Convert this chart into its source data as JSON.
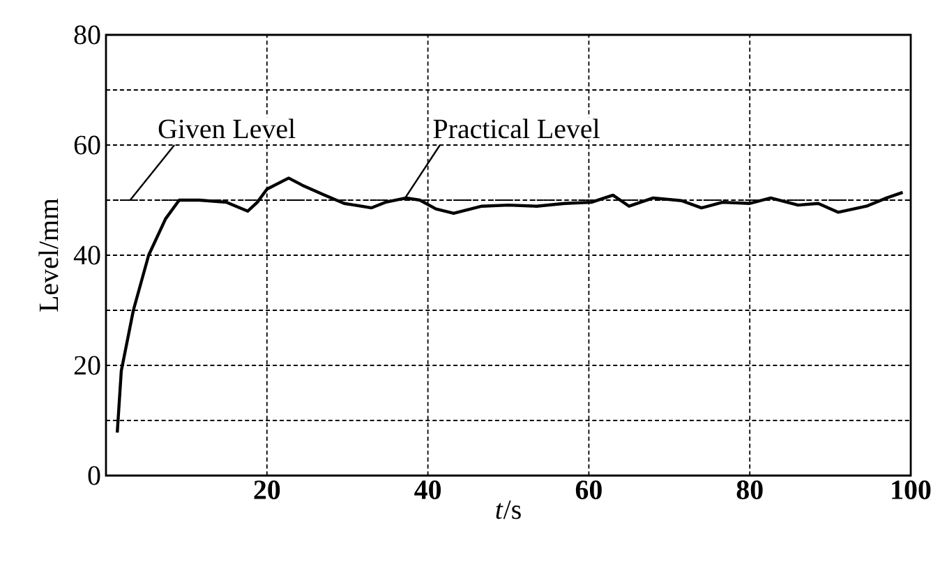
{
  "chart_data": {
    "type": "line",
    "xlabel": "*t*/s",
    "ylabel": "Level/mm",
    "xlim": [
      0,
      100
    ],
    "ylim": [
      0,
      80
    ],
    "xticks": [
      20,
      40,
      60,
      80,
      100
    ],
    "yticks": [
      0,
      {
        "value": 10,
        "label": null
      },
      20,
      {
        "value": 30,
        "label": null
      },
      40,
      {
        "value": 50,
        "label": null
      },
      60,
      {
        "value": 70,
        "label": null
      },
      80
    ],
    "grid": true,
    "marker": "none",
    "series": [
      {
        "name": "Given Level",
        "color": "#000000",
        "line_style": "dashed",
        "x": [
          0,
          100
        ],
        "values": [
          50,
          50
        ]
      },
      {
        "name": "Practical Level",
        "color": "#000000",
        "line_style": "solid",
        "x": [
          1.4,
          1.9,
          3.4,
          5.3,
          7.4,
          9.1,
          11.6,
          15,
          17.6,
          18.8,
          20,
          22.7,
          24.4,
          27,
          29.6,
          33,
          34.7,
          37.3,
          39,
          41,
          43.2,
          46.7,
          50,
          53.5,
          57,
          60.3,
          63,
          65,
          68,
          71.5,
          74,
          76.6,
          80,
          82.6,
          86,
          88.5,
          91,
          94.5,
          97,
          99
        ],
        "values": [
          7.8,
          19,
          30,
          40,
          46.6,
          50,
          50,
          49.6,
          48,
          49.6,
          52,
          54,
          52.7,
          51,
          49.4,
          48.6,
          49.6,
          50.4,
          50,
          48.4,
          47.6,
          48.9,
          49.1,
          48.9,
          49.4,
          49.6,
          50.9,
          48.9,
          50.4,
          49.9,
          48.6,
          49.6,
          49.4,
          50.4,
          49.1,
          49.4,
          47.8,
          48.9,
          50.4,
          51.4
        ]
      }
    ]
  }
}
